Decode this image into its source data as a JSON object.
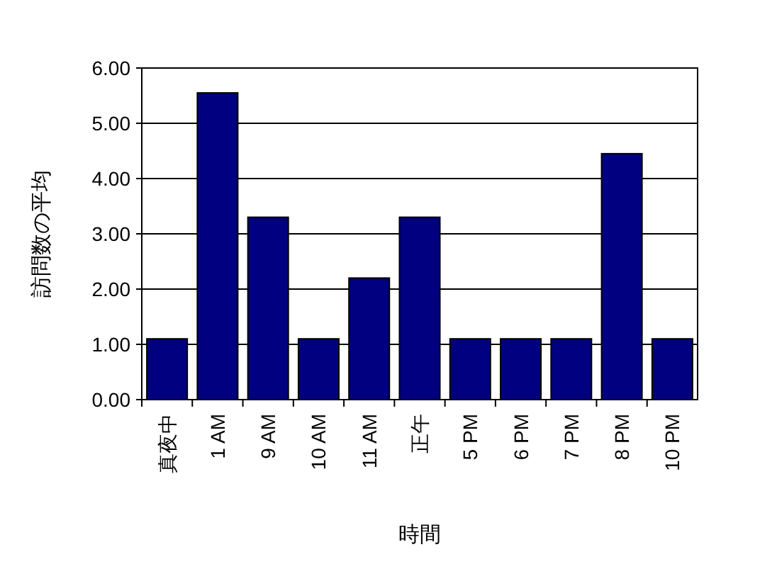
{
  "chart_data": {
    "type": "bar",
    "xlabel": "時間",
    "ylabel": "訪問数の平均",
    "categories": [
      "真夜中",
      "1 AM",
      "9 AM",
      "10 AM",
      "11 AM",
      "正午",
      "5 PM",
      "6 PM",
      "7 PM",
      "8 PM",
      "10 PM"
    ],
    "values": [
      1.1,
      5.55,
      3.3,
      1.1,
      2.2,
      3.3,
      1.1,
      1.1,
      1.1,
      4.45,
      1.1
    ],
    "color": "#000080",
    "ylim": [
      0,
      6
    ],
    "yticks": [
      {
        "value": 0,
        "label": "0.00"
      },
      {
        "value": 1,
        "label": "1.00"
      },
      {
        "value": 2,
        "label": "2.00"
      },
      {
        "value": 3,
        "label": "3.00"
      },
      {
        "value": 4,
        "label": "4.00"
      },
      {
        "value": 5,
        "label": "5.00"
      },
      {
        "value": 6,
        "label": "6.00"
      }
    ],
    "grid": "y"
  }
}
